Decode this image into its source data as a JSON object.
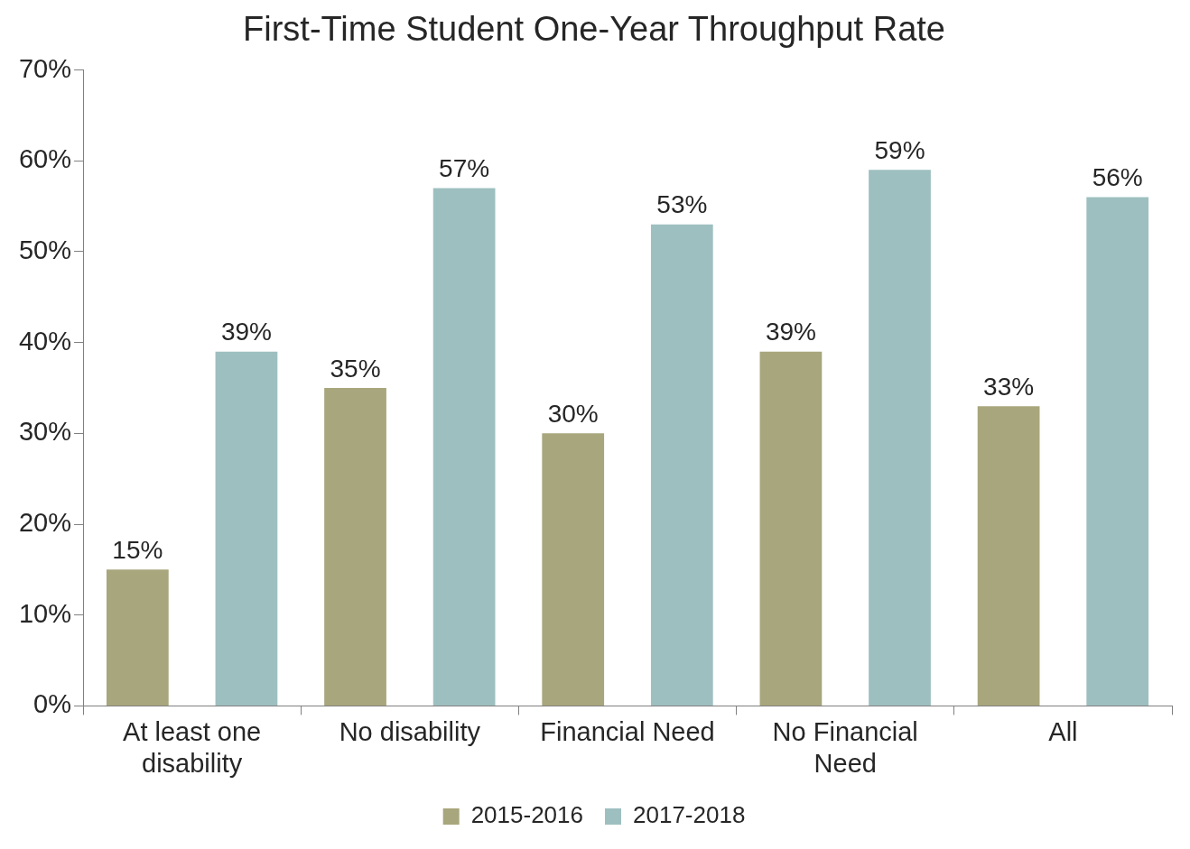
{
  "chart_data": {
    "type": "bar",
    "title": "First-Time Student One-Year Throughput Rate",
    "categories": [
      "At least one disability",
      "No disability",
      "Financial Need",
      "No Financial Need",
      "All"
    ],
    "series": [
      {
        "name": "2015-2016",
        "color": "#a8a67c",
        "values": [
          15,
          35,
          30,
          39,
          33
        ],
        "value_labels": [
          "15%",
          "35%",
          "30%",
          "39%",
          "33%"
        ]
      },
      {
        "name": "2017-2018",
        "color": "#9ebfbf",
        "values": [
          39,
          57,
          53,
          59,
          56
        ],
        "value_labels": [
          "39%",
          "57%",
          "53%",
          "59%",
          "56%"
        ]
      }
    ],
    "ylim": [
      0,
      70
    ],
    "yticks": [
      {
        "value": 0,
        "label": "0%"
      },
      {
        "value": 10,
        "label": "10%"
      },
      {
        "value": 20,
        "label": "20%"
      },
      {
        "value": 30,
        "label": "30%"
      },
      {
        "value": 40,
        "label": "40%"
      },
      {
        "value": 50,
        "label": "50%"
      },
      {
        "value": 60,
        "label": "60%"
      },
      {
        "value": 70,
        "label": "70%"
      }
    ],
    "grid": false,
    "legend": "bottom"
  }
}
